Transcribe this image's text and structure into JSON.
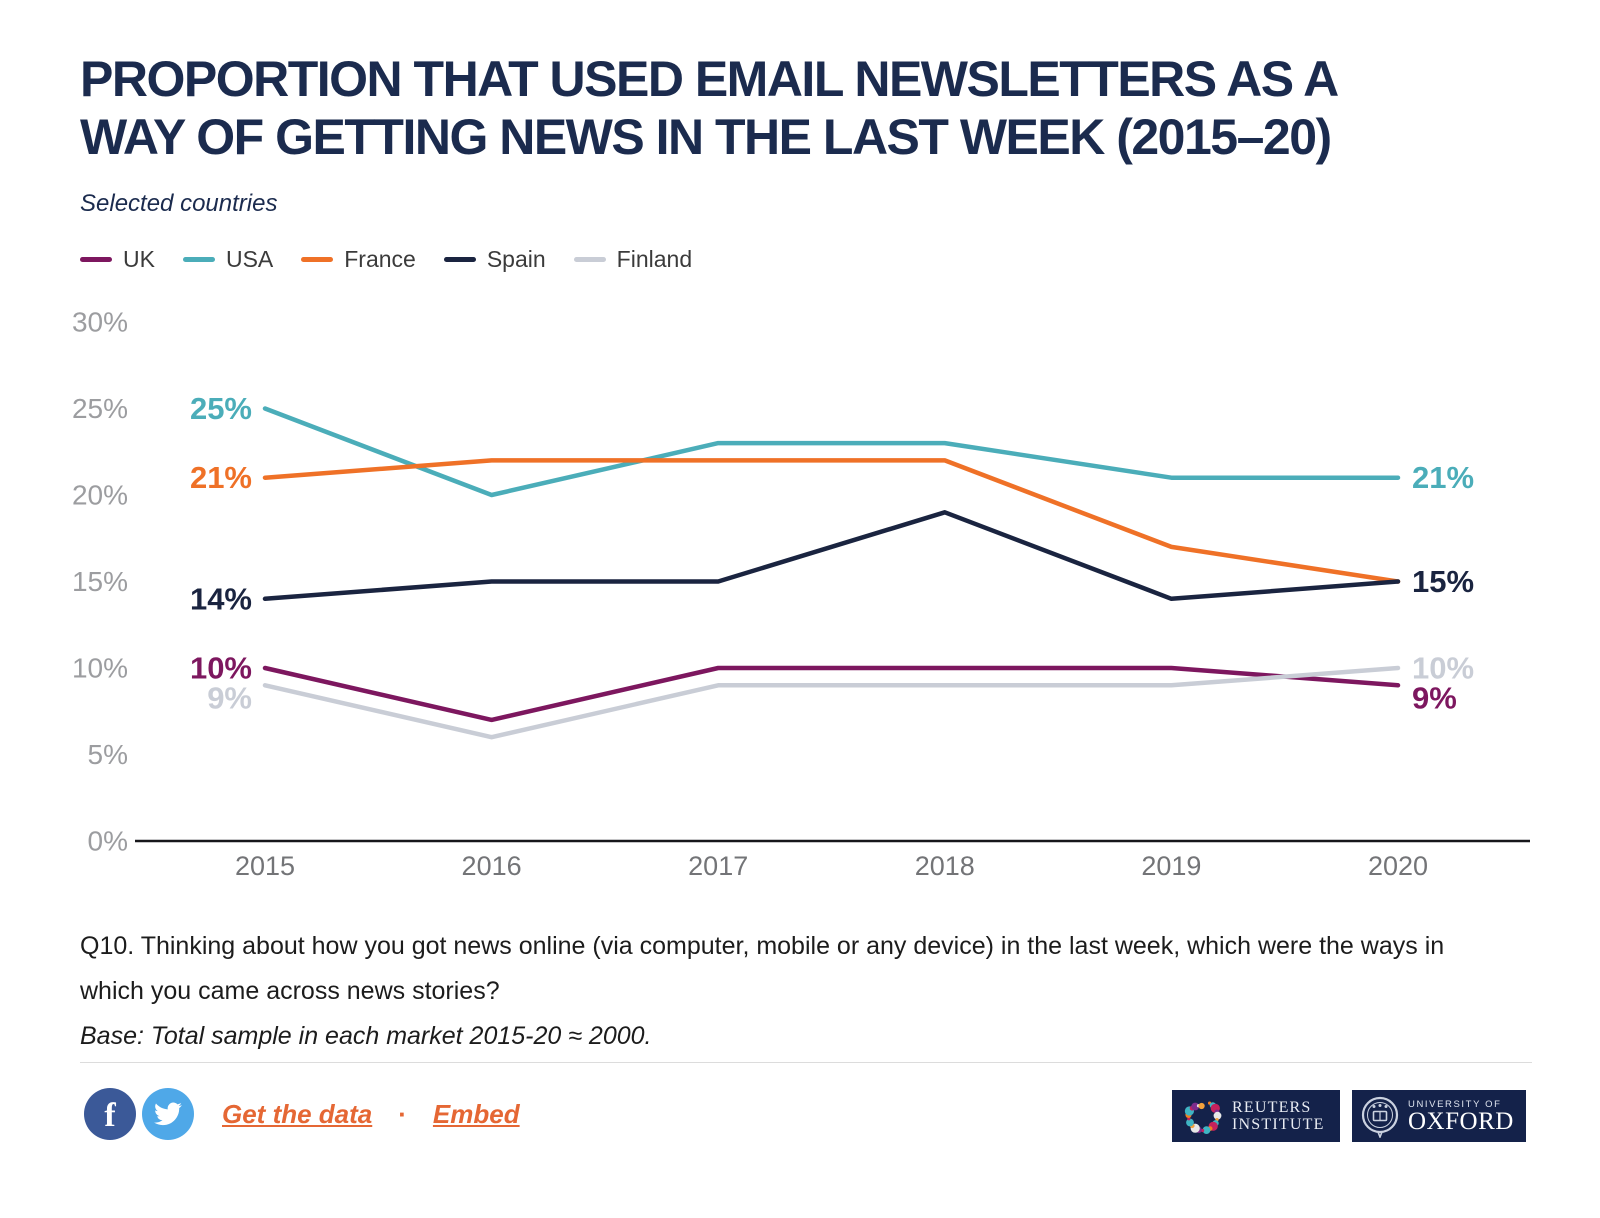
{
  "header": {
    "title_line1": "PROPORTION THAT USED EMAIL NEWSLETTERS AS A",
    "title_line2": "WAY OF GETTING NEWS IN THE LAST WEEK (2015–20)",
    "subtitle": "Selected countries"
  },
  "chart_data": {
    "type": "line",
    "x": [
      "2015",
      "2016",
      "2017",
      "2018",
      "2019",
      "2020"
    ],
    "series": [
      {
        "name": "UK",
        "color": "#7D175F",
        "values": [
          10,
          7,
          10,
          10,
          10,
          9
        ]
      },
      {
        "name": "USA",
        "color": "#4BADB9",
        "values": [
          25,
          20,
          23,
          23,
          21,
          21
        ]
      },
      {
        "name": "France",
        "color": "#EF7127",
        "values": [
          21,
          22,
          22,
          22,
          17,
          15
        ]
      },
      {
        "name": "Spain",
        "color": "#1A2440",
        "values": [
          14,
          15,
          15,
          19,
          14,
          15
        ]
      },
      {
        "name": "Finland",
        "color": "#C9CDD6",
        "values": [
          9,
          6,
          9,
          9,
          9,
          10
        ]
      }
    ],
    "yticks": [
      0,
      5,
      10,
      15,
      20,
      25,
      30
    ],
    "ylim": [
      0,
      30
    ],
    "value_suffix": "%",
    "grid": false,
    "legend_position": "top-left",
    "edge_value_labels": true
  },
  "footnote": {
    "question": "Q10. Thinking about how you got news online (via computer, mobile or any device) in the last week, which were the ways in which you came across news stories?",
    "base": "Base: Total sample in each market 2015-20 ≈ 2000."
  },
  "footer": {
    "get_data_label": "Get the data",
    "separator": "·",
    "embed_label": "Embed",
    "facebook_glyph": "f"
  },
  "logos": {
    "reuters_line1": "REUTERS",
    "reuters_line2": "INSTITUTE",
    "oxford_line1": "UNIVERSITY OF",
    "oxford_line2": "OXFORD"
  },
  "colors": {
    "title": "#1B2B4E",
    "axis_label": "#9C9DA0",
    "x_label": "#737477",
    "link_orange": "#E56734",
    "facebook_blue": "#3B5998",
    "twitter_blue": "#4FA8E8",
    "logo_navy": "#14224A"
  }
}
